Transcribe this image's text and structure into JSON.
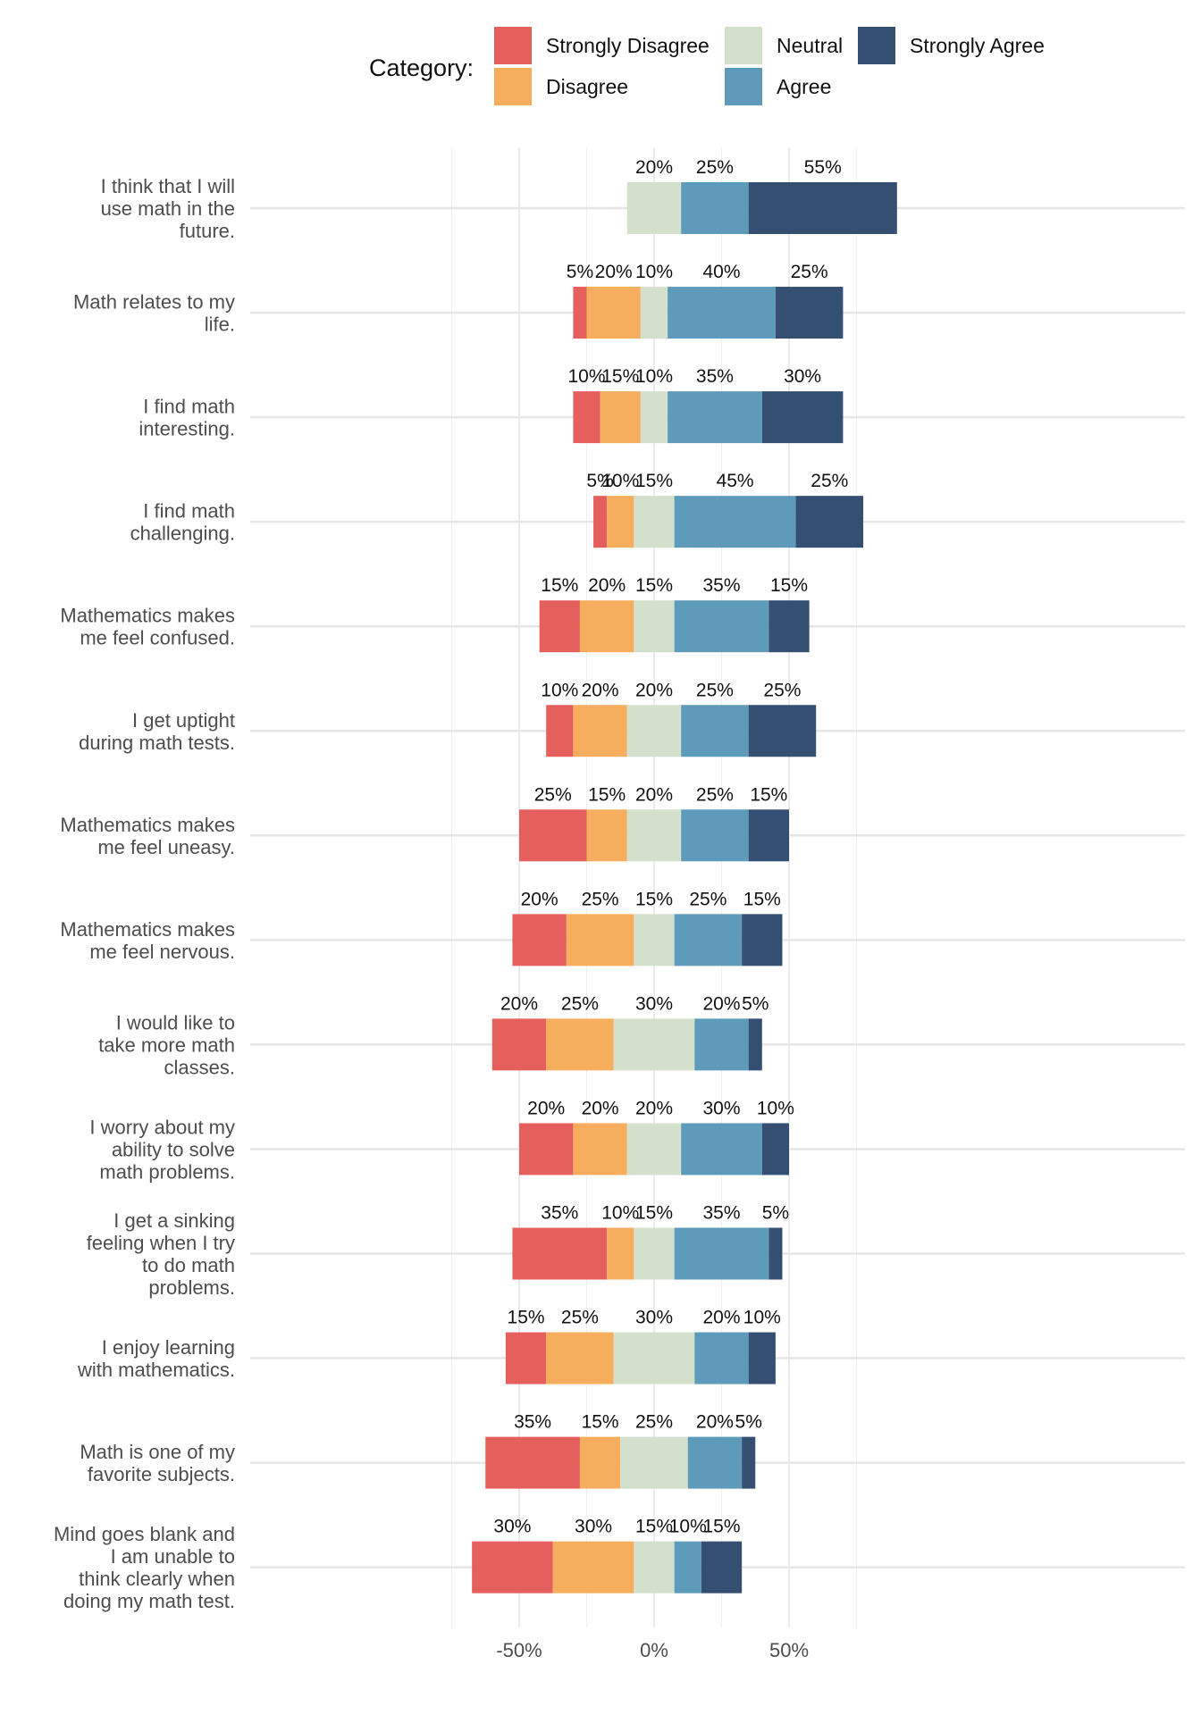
{
  "chart_data": {
    "type": "bar",
    "orientation": "horizontal",
    "stacked": true,
    "diverging": true,
    "legend": {
      "title": "Category:",
      "placement": "top",
      "entries": [
        "Strongly Disagree",
        "Disagree",
        "Neutral",
        "Agree",
        "Strongly Agree"
      ]
    },
    "colors": {
      "Strongly Disagree": "#e5605d",
      "Disagree": "#f6ad5e",
      "Neutral": "#d3e0cc",
      "Agree": "#5e9ab9",
      "Strongly Agree": "#344f72"
    },
    "xlim": [
      -75,
      98
    ],
    "x_ticks": [
      -50,
      0,
      50
    ],
    "x_tick_labels": [
      "-50%",
      "0%",
      "50%"
    ],
    "grid": true,
    "categories": [
      "I think that I will use math in the future.",
      "Math relates to my life.",
      "I find math interesting.",
      "I find math challenging.",
      "Mathematics makes me feel confused.",
      "I get uptight during math tests.",
      "Mathematics makes me feel uneasy.",
      "Mathematics makes me feel nervous.",
      "I would like to take more math classes.",
      "I worry about my ability to solve math problems.",
      "I get a sinking feeling when I try to do math problems.",
      "I enjoy learning with mathematics.",
      "Math is one of my favorite subjects.",
      "Mind goes blank and I am unable to think clearly when doing my math test."
    ],
    "category_label_lines": [
      [
        "I think that I will",
        "use math in the",
        "future."
      ],
      [
        "Math relates to my",
        "life."
      ],
      [
        "I find math",
        "interesting."
      ],
      [
        "I find math",
        "challenging."
      ],
      [
        "Mathematics makes",
        "me feel confused."
      ],
      [
        "I get uptight",
        "during math tests."
      ],
      [
        "Mathematics makes",
        "me feel uneasy."
      ],
      [
        "Mathematics makes",
        "me feel nervous."
      ],
      [
        "I would like to",
        "take more math",
        "classes."
      ],
      [
        "I worry about my",
        "ability to solve",
        "math problems."
      ],
      [
        "I get a sinking",
        "feeling when I try",
        "to do math",
        "problems."
      ],
      [
        "I enjoy learning",
        "with mathematics."
      ],
      [
        "Math is one of my",
        "favorite subjects."
      ],
      [
        "Mind goes blank and",
        "I am unable to",
        "think clearly when",
        "doing my math test."
      ]
    ],
    "series": [
      {
        "name": "Strongly Disagree",
        "values": [
          0,
          5,
          10,
          5,
          15,
          10,
          25,
          20,
          20,
          20,
          35,
          15,
          35,
          30
        ]
      },
      {
        "name": "Disagree",
        "values": [
          0,
          20,
          15,
          10,
          20,
          20,
          15,
          25,
          25,
          20,
          10,
          25,
          15,
          30
        ]
      },
      {
        "name": "Neutral",
        "values": [
          20,
          10,
          10,
          15,
          15,
          20,
          20,
          15,
          30,
          20,
          15,
          30,
          25,
          15
        ]
      },
      {
        "name": "Agree",
        "values": [
          25,
          40,
          35,
          45,
          35,
          25,
          25,
          25,
          20,
          30,
          35,
          20,
          20,
          10
        ]
      },
      {
        "name": "Strongly Agree",
        "values": [
          55,
          25,
          30,
          25,
          15,
          25,
          15,
          15,
          5,
          10,
          5,
          10,
          5,
          15
        ]
      }
    ],
    "value_suffix": "%"
  }
}
